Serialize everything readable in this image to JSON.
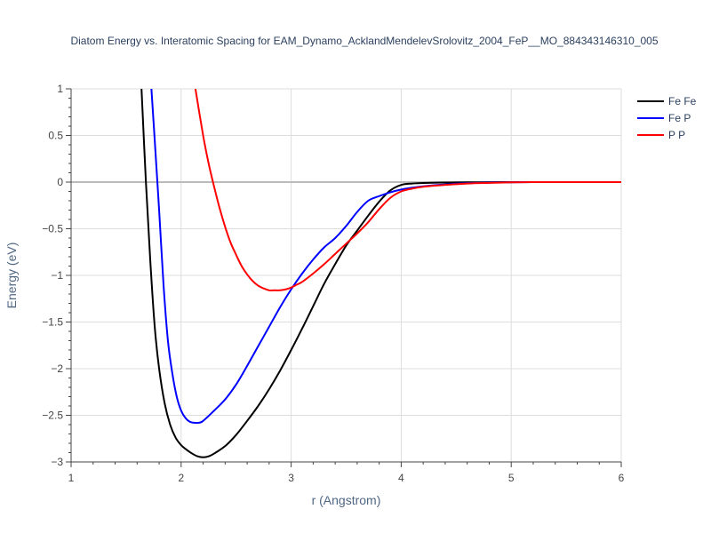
{
  "chart_data": {
    "type": "line",
    "title": "Diatom Energy vs. Interatomic Spacing for EAM_Dynamo_AcklandMendelevSrolovitz_2004_FeP__MO_884343146310_005",
    "xlabel": "r (Angstrom)",
    "ylabel": "Energy (eV)",
    "xlim": [
      1,
      6
    ],
    "ylim": [
      -3,
      1
    ],
    "xticks": [
      1,
      2,
      3,
      4,
      5,
      6
    ],
    "xtick_labels": [
      "1",
      "2",
      "3",
      "4",
      "5",
      "6"
    ],
    "yticks": [
      1,
      0.5,
      0,
      -0.5,
      -1,
      -1.5,
      -2,
      -2.5,
      -3
    ],
    "ytick_labels": [
      "1",
      "0.5",
      "0",
      "−0.5",
      "−1",
      "−1.5",
      "−2",
      "−2.5",
      "−3"
    ],
    "grid": true,
    "legend_position": "top-right",
    "series": [
      {
        "name": "Fe Fe",
        "color": "#000000",
        "x": [
          1.64,
          1.68,
          1.72,
          1.76,
          1.8,
          1.85,
          1.9,
          1.95,
          2.0,
          2.05,
          2.1,
          2.15,
          2.2,
          2.25,
          2.3,
          2.4,
          2.5,
          2.6,
          2.7,
          2.8,
          2.9,
          3.0,
          3.1,
          3.2,
          3.3,
          3.4,
          3.5,
          3.6,
          3.7,
          3.8,
          3.9,
          4.0,
          4.1,
          4.2,
          4.4,
          4.6,
          4.8,
          5.0,
          5.2,
          5.5,
          6.0
        ],
        "y": [
          1.0,
          0.0,
          -0.85,
          -1.55,
          -2.0,
          -2.37,
          -2.6,
          -2.74,
          -2.82,
          -2.87,
          -2.91,
          -2.94,
          -2.95,
          -2.94,
          -2.91,
          -2.83,
          -2.71,
          -2.56,
          -2.4,
          -2.22,
          -2.02,
          -1.8,
          -1.57,
          -1.33,
          -1.09,
          -0.88,
          -0.68,
          -0.52,
          -0.36,
          -0.21,
          -0.09,
          -0.03,
          -0.015,
          -0.01,
          -0.005,
          -0.003,
          -0.001,
          0.0,
          0.0,
          0.0,
          0.0
        ]
      },
      {
        "name": "Fe P",
        "color": "#0000ff",
        "x": [
          1.73,
          1.76,
          1.8,
          1.84,
          1.88,
          1.92,
          1.96,
          2.0,
          2.04,
          2.08,
          2.12,
          2.16,
          2.2,
          2.3,
          2.4,
          2.5,
          2.6,
          2.7,
          2.8,
          2.9,
          3.0,
          3.1,
          3.2,
          3.3,
          3.4,
          3.5,
          3.6,
          3.7,
          3.8,
          3.9,
          4.0,
          4.1,
          4.2,
          4.4,
          4.6,
          4.8,
          5.0,
          5.2,
          5.5,
          6.0
        ],
        "y": [
          1.0,
          0.45,
          -0.3,
          -1.1,
          -1.7,
          -2.05,
          -2.3,
          -2.45,
          -2.53,
          -2.57,
          -2.58,
          -2.58,
          -2.56,
          -2.45,
          -2.33,
          -2.17,
          -1.97,
          -1.76,
          -1.55,
          -1.34,
          -1.15,
          -0.98,
          -0.83,
          -0.7,
          -0.6,
          -0.47,
          -0.32,
          -0.2,
          -0.15,
          -0.11,
          -0.08,
          -0.06,
          -0.045,
          -0.025,
          -0.012,
          -0.006,
          -0.002,
          0.0,
          0.0,
          0.0
        ]
      },
      {
        "name": "P P",
        "color": "#ff0000",
        "x": [
          2.13,
          2.2,
          2.25,
          2.3,
          2.35,
          2.4,
          2.45,
          2.5,
          2.55,
          2.6,
          2.65,
          2.7,
          2.75,
          2.8,
          2.85,
          2.9,
          2.95,
          3.0,
          3.05,
          3.1,
          3.2,
          3.3,
          3.4,
          3.5,
          3.6,
          3.7,
          3.8,
          3.9,
          4.0,
          4.1,
          4.2,
          4.4,
          4.6,
          4.8,
          5.0,
          5.2,
          5.5,
          6.0
        ],
        "y": [
          1.0,
          0.5,
          0.2,
          -0.05,
          -0.28,
          -0.48,
          -0.65,
          -0.78,
          -0.9,
          -0.99,
          -1.06,
          -1.11,
          -1.14,
          -1.16,
          -1.16,
          -1.16,
          -1.15,
          -1.13,
          -1.1,
          -1.07,
          -0.98,
          -0.88,
          -0.77,
          -0.66,
          -0.55,
          -0.43,
          -0.29,
          -0.17,
          -0.1,
          -0.07,
          -0.05,
          -0.03,
          -0.015,
          -0.008,
          -0.003,
          0.0,
          0.0,
          0.0
        ]
      }
    ]
  }
}
